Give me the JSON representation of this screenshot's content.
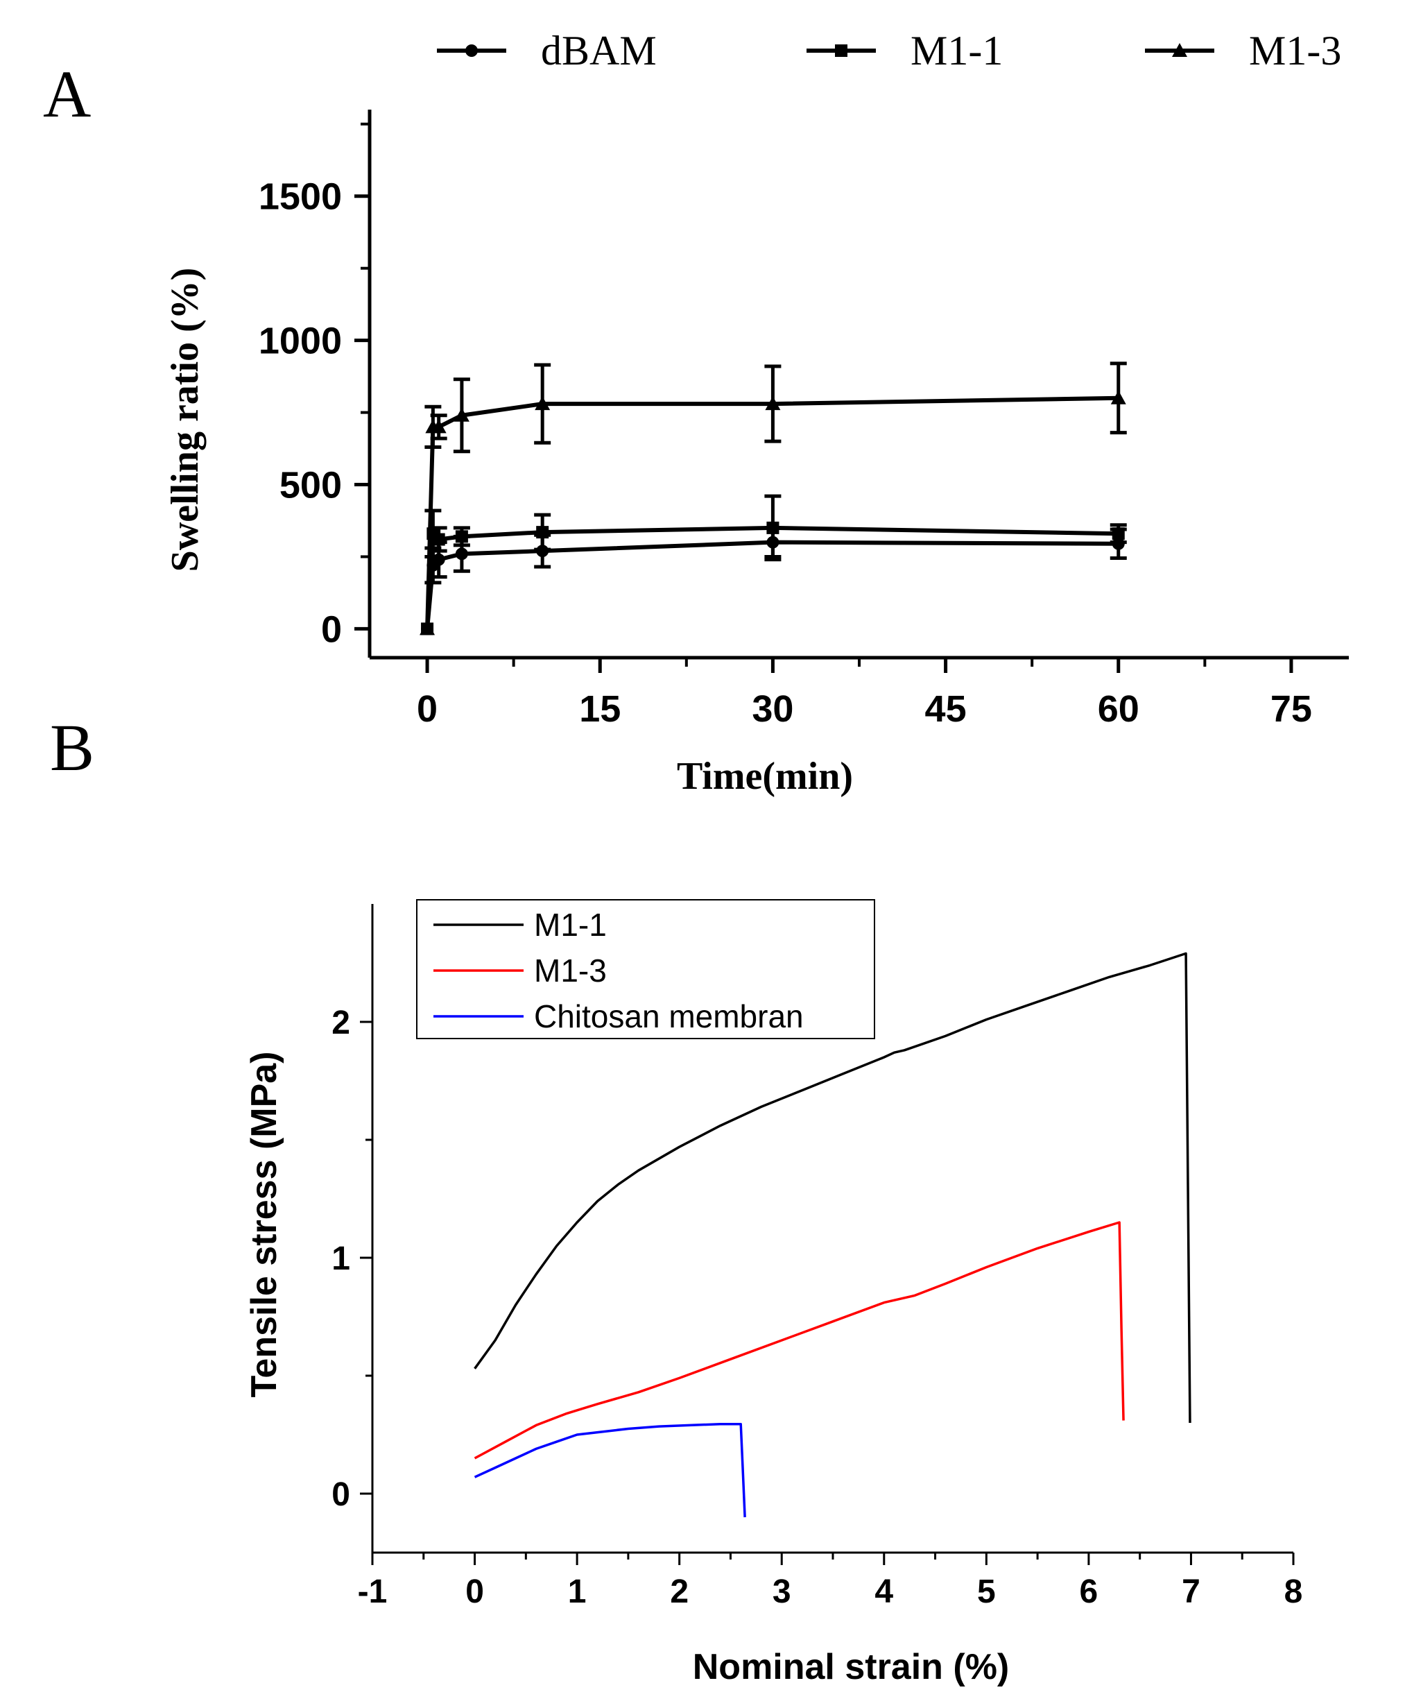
{
  "panel_a_label": "A",
  "panel_b_label": "B",
  "chart_data": [
    {
      "type": "line",
      "xlabel": "Time(min)",
      "ylabel": "Swelling ratio (%)",
      "xlim": [
        -5,
        80
      ],
      "ylim": [
        -100,
        1800
      ],
      "xticks": [
        0,
        15,
        30,
        45,
        60,
        75
      ],
      "yticks": [
        0,
        500,
        1000,
        1500
      ],
      "legend_position": "top",
      "series": [
        {
          "name": "dBAM",
          "marker": "circle",
          "color": "#000000",
          "x": [
            0,
            0.5,
            1,
            3,
            10,
            30,
            60
          ],
          "y": [
            0,
            220,
            240,
            260,
            270,
            300,
            295
          ],
          "err": [
            0,
            60,
            60,
            60,
            55,
            50,
            50
          ]
        },
        {
          "name": "M1-1",
          "marker": "square",
          "color": "#000000",
          "x": [
            0,
            0.5,
            1,
            3,
            10,
            30,
            60
          ],
          "y": [
            0,
            330,
            310,
            320,
            335,
            350,
            330
          ],
          "err": [
            0,
            80,
            40,
            30,
            60,
            110,
            30
          ]
        },
        {
          "name": "M1-3",
          "marker": "triangle",
          "color": "#000000",
          "x": [
            0,
            0.5,
            1,
            3,
            10,
            30,
            60
          ],
          "y": [
            0,
            700,
            700,
            740,
            780,
            780,
            800
          ],
          "err": [
            0,
            70,
            40,
            125,
            135,
            130,
            120
          ]
        }
      ]
    },
    {
      "type": "line",
      "xlabel": "Nominal strain (%)",
      "ylabel": "Tensile stress (MPa)",
      "xlim": [
        -1,
        8
      ],
      "ylim": [
        -0.25,
        2.5
      ],
      "xticks": [
        -1,
        0,
        1,
        2,
        3,
        4,
        5,
        6,
        7,
        8
      ],
      "yticks": [
        0,
        1,
        2
      ],
      "legend_position": "top-left",
      "series": [
        {
          "name": "M1-1",
          "color": "#000000",
          "x": [
            0,
            0.2,
            0.4,
            0.6,
            0.8,
            1.0,
            1.2,
            1.4,
            1.6,
            1.8,
            2.0,
            2.4,
            2.8,
            3.2,
            3.6,
            4.0,
            4.1,
            4.2,
            4.6,
            5.0,
            5.4,
            5.8,
            6.2,
            6.6,
            6.95,
            6.97,
            6.99
          ],
          "y": [
            0.53,
            0.65,
            0.8,
            0.93,
            1.05,
            1.15,
            1.24,
            1.31,
            1.37,
            1.42,
            1.47,
            1.56,
            1.64,
            1.71,
            1.78,
            1.85,
            1.87,
            1.88,
            1.94,
            2.01,
            2.07,
            2.13,
            2.19,
            2.24,
            2.29,
            1.3,
            0.3
          ]
        },
        {
          "name": "M1-3",
          "color": "#ff0000",
          "x": [
            0,
            0.3,
            0.6,
            0.9,
            1.2,
            1.6,
            2.0,
            2.5,
            3.0,
            3.5,
            4.0,
            4.3,
            4.6,
            5.0,
            5.5,
            6.0,
            6.3,
            6.32,
            6.34
          ],
          "y": [
            0.15,
            0.22,
            0.29,
            0.34,
            0.38,
            0.43,
            0.49,
            0.57,
            0.65,
            0.73,
            0.81,
            0.84,
            0.89,
            0.96,
            1.04,
            1.11,
            1.15,
            0.7,
            0.31
          ]
        },
        {
          "name": "Chitosan membran",
          "color": "#0000ff",
          "x": [
            0,
            0.2,
            0.4,
            0.6,
            0.8,
            1.0,
            1.2,
            1.5,
            1.8,
            2.1,
            2.4,
            2.6,
            2.62,
            2.64
          ],
          "y": [
            0.07,
            0.11,
            0.15,
            0.19,
            0.22,
            0.25,
            0.26,
            0.275,
            0.285,
            0.29,
            0.295,
            0.295,
            0.1,
            -0.1
          ]
        }
      ]
    }
  ]
}
